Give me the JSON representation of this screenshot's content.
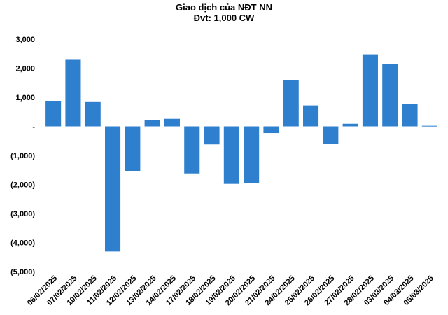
{
  "chart_data": {
    "type": "bar",
    "title": "Giao dịch của NĐT NN",
    "subtitle": "Đvt: 1,000 CW",
    "xlabel": "",
    "ylabel": "",
    "categories": [
      "06/02/2025",
      "07/02/2025",
      "10/02/2025",
      "11/02/2025",
      "12/02/2025",
      "13/02/2025",
      "14/02/2025",
      "17/02/2025",
      "18/02/2025",
      "19/02/2025",
      "20/02/2025",
      "21/02/2025",
      "24/02/2025",
      "25/02/2025",
      "26/02/2025",
      "27/02/2025",
      "28/02/2025",
      "03/03/2025",
      "04/03/2025",
      "05/03/2025"
    ],
    "values": [
      880,
      2290,
      860,
      -4310,
      -1530,
      210,
      260,
      -1620,
      -620,
      -1980,
      -1940,
      -230,
      1600,
      720,
      -600,
      90,
      2480,
      2150,
      770,
      20
    ],
    "ylim": [
      -5000,
      3000
    ],
    "yticks": [
      3000,
      2000,
      1000,
      0,
      -1000,
      -2000,
      -3000,
      -4000,
      -5000
    ],
    "ytick_labels": [
      "3,000",
      "2,000",
      "1,000",
      "-",
      "(1,000)",
      "(2,000)",
      "(3,000)",
      "(4,000)",
      "(5,000)"
    ],
    "bar_color": "#2F7FCF",
    "grid": false,
    "legend": "none"
  }
}
